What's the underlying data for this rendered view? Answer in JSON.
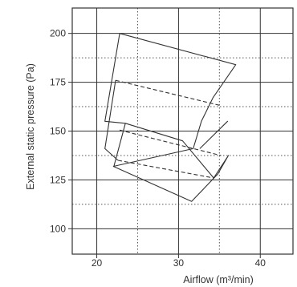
{
  "chart_data": {
    "type": "line",
    "title": "",
    "xlabel": "Airflow (m³/min)",
    "ylabel": "External static pressure (Pa)",
    "xlim": [
      17,
      44
    ],
    "ylim": [
      87,
      213
    ],
    "x_ticks": [
      20,
      30,
      40
    ],
    "x_tick_labels": [
      "20",
      "30",
      "40"
    ],
    "y_ticks": [
      100,
      125,
      150,
      175,
      200
    ],
    "y_tick_labels": [
      "100",
      "125",
      "150",
      "175",
      "200"
    ],
    "grid": {
      "major_x": [
        20,
        30,
        40
      ],
      "minor_x": [
        25,
        35
      ],
      "major_y": [
        100,
        125,
        150,
        175,
        200
      ],
      "minor_y": [
        112.5,
        137.5,
        162.5,
        187.5
      ]
    },
    "legend": "none",
    "series": [
      {
        "style": "solid",
        "x": [
          22.8,
          37.0,
          34.2,
          32.8,
          31.8,
          22.1,
          23.5,
          21.0,
          22.8
        ],
        "y": [
          200.0,
          184.0,
          167.0,
          155.0,
          141.0,
          132.0,
          154.0,
          155.0,
          200.0
        ]
      },
      {
        "style": "solid",
        "x": [
          22.3,
          21.0,
          22.6
        ],
        "y": [
          176.0,
          141.0,
          135.0
        ]
      },
      {
        "style": "dashed",
        "x": [
          22.3,
          35.2
        ],
        "y": [
          176.0,
          163.0
        ]
      },
      {
        "style": "dashed",
        "x": [
          22.6,
          34.3
        ],
        "y": [
          135.0,
          126.0
        ]
      },
      {
        "style": "solid",
        "x": [
          32.6,
          36.0,
          32.6
        ],
        "y": [
          141.0,
          155.0,
          141.0
        ]
      },
      {
        "style": "solid",
        "x": [
          23.5,
          30.5,
          34.3,
          36.1,
          34.8,
          31.6,
          22.0
        ],
        "y": [
          154.0,
          145.0,
          126.0,
          137.5,
          128.0,
          114.0,
          132.0
        ]
      },
      {
        "style": "dashed",
        "x": [
          22.8,
          35.2
        ],
        "y": [
          150.5,
          137.5
        ]
      }
    ]
  }
}
